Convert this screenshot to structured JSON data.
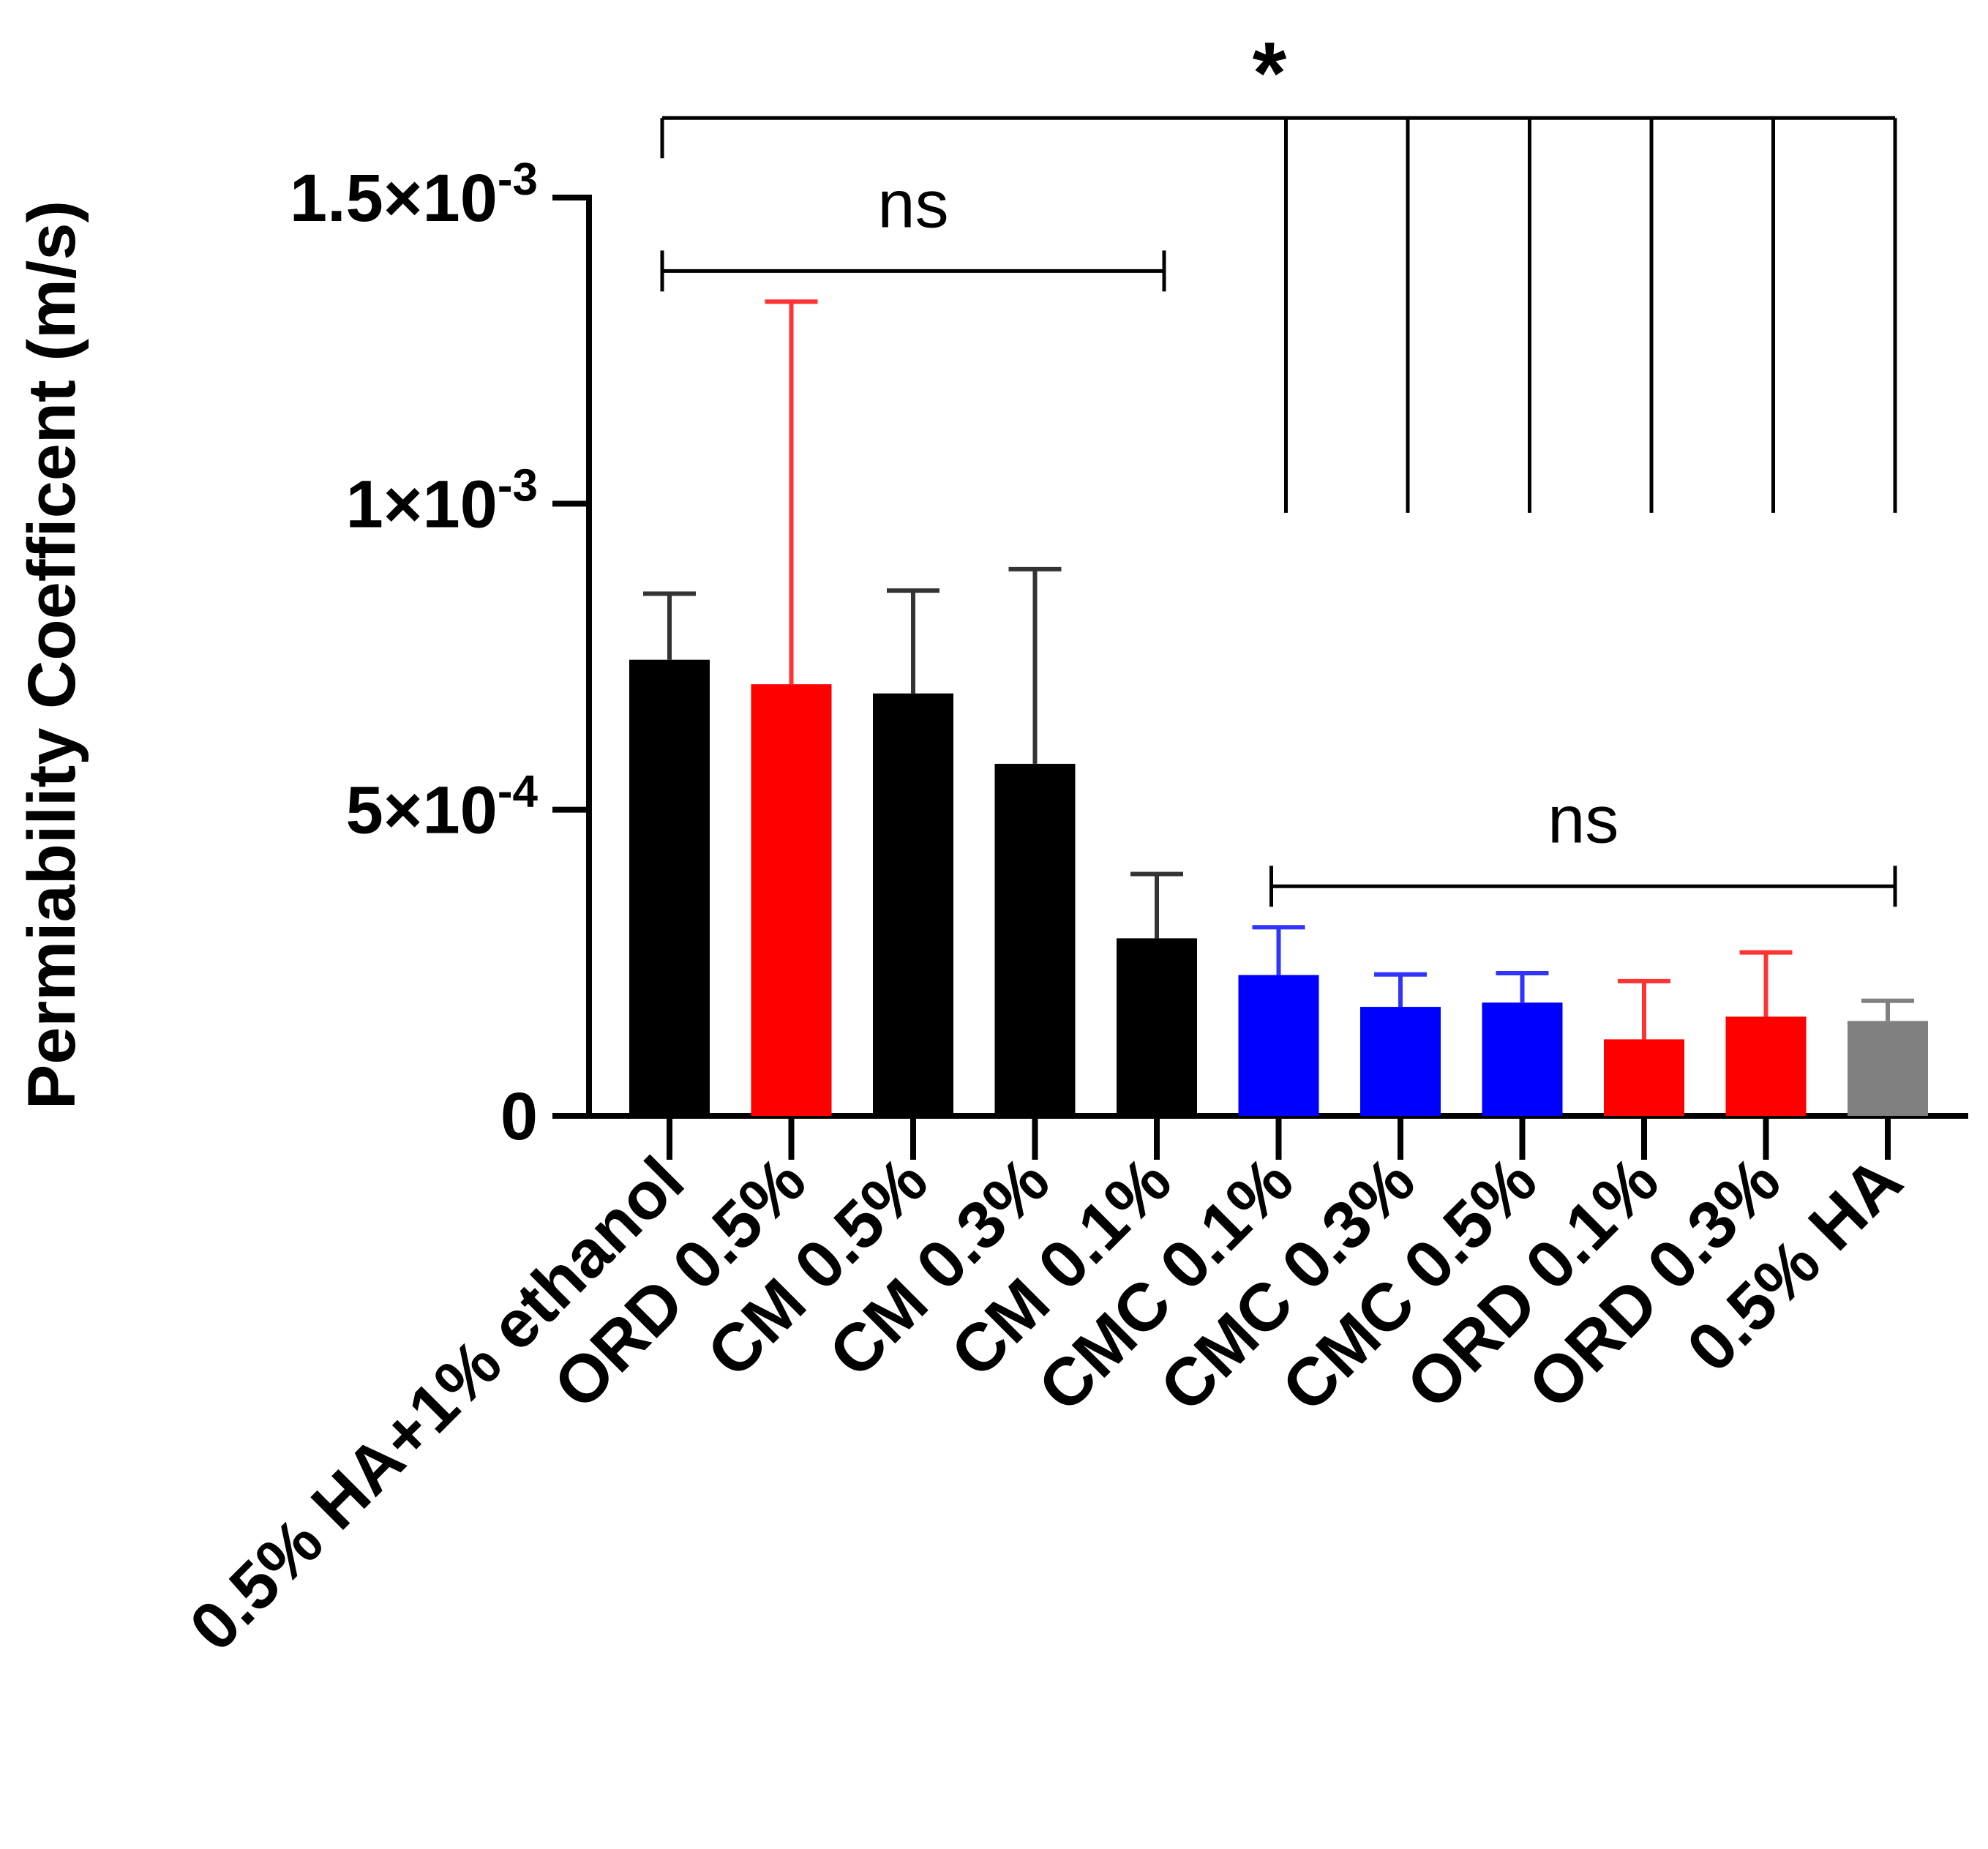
{
  "chart_data": {
    "type": "bar",
    "title": "",
    "xlabel": "",
    "ylabel": "Permiability Coefficent (m/s)",
    "ylim": [
      0,
      0.0015
    ],
    "y_ticks": [
      {
        "value": 0,
        "label": "0"
      },
      {
        "value": 0.0005,
        "label": "5×10",
        "exp": "-4"
      },
      {
        "value": 0.001,
        "label": "1×10",
        "exp": "-3"
      },
      {
        "value": 0.0015,
        "label": "1.5×10",
        "exp": "-3"
      }
    ],
    "categories": [
      "0.5% HA+1% ethanol",
      "ORD 0.5%",
      "CM 0.5%",
      "CM 0.3%",
      "CM 0.1%",
      "CMC 0.1%",
      "CMC 0.3%",
      "CMC 0.5%",
      "ORD 0.1%",
      "ORD 0.3%",
      "0.5% HA"
    ],
    "values": [
      0.000745,
      0.000705,
      0.00069,
      0.000575,
      0.00029,
      0.00023,
      0.000178,
      0.000185,
      0.000125,
      0.000162,
      0.000155
    ],
    "errors": [
      0.000108,
      0.000625,
      0.000168,
      0.000318,
      0.000105,
      7.8e-05,
      5.3e-05,
      4.8e-05,
      9.5e-05,
      0.000105,
      3.3e-05
    ],
    "colors": [
      "#000000",
      "#ff0000",
      "#000000",
      "#000000",
      "#000000",
      "#0000ff",
      "#0000ff",
      "#0000ff",
      "#ff0000",
      "#ff0000",
      "#808080"
    ],
    "error_colors": [
      "#333333",
      "#ff3333",
      "#333333",
      "#333333",
      "#333333",
      "#3333ff",
      "#3333ff",
      "#3333ff",
      "#ff3333",
      "#ff3333",
      "#808080"
    ],
    "significance": [
      {
        "label": "ns",
        "from": 0,
        "to": 4,
        "level": 0.00138
      },
      {
        "label": "ns",
        "from": 5,
        "to": 10,
        "level": 0.000375
      },
      {
        "label": "*",
        "from": 0,
        "to": 10,
        "level": 0.00163,
        "drops_to": [
          5,
          6,
          7,
          8,
          9,
          10
        ],
        "drop_level": 0.000985
      }
    ]
  }
}
